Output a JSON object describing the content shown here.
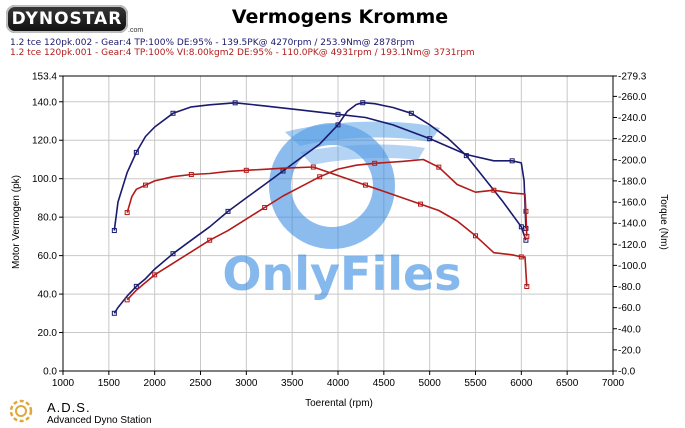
{
  "header": {
    "logo": "DYNOSTAR",
    "logo_sub": ".com",
    "title": "Vermogens Kromme",
    "run_1": "1.2 tce 120pk.002 - Gear:4 TP:100% DE:95%   - 139.5PK@ 4270rpm / 253.9Nm@ 2878rpm",
    "run_2": "1.2 tce 120pk.001 - Gear:4 TP:100% VI:8.00kgm2 DE:95%   - 110.0PK@ 4931rpm / 193.1Nm@ 3731rpm"
  },
  "footer": {
    "title": "A.D.S.",
    "subtitle": "Advanced Dyno Station"
  },
  "watermark": "OnlyFiles",
  "colors": {
    "run_1": "#1a1a6e",
    "run_2": "#b31b1b",
    "grid": "#c8c8c8",
    "watermark": "#2e86de"
  },
  "chart_data": {
    "type": "line",
    "xlabel": "Toerental (rpm)",
    "ylabel": "Motor Vermogen (pk)",
    "y2label": "Torque (Nm)",
    "xlim": [
      1000,
      7000
    ],
    "ylim": [
      0,
      153.4
    ],
    "y2lim": [
      0,
      279.3
    ],
    "x_ticks": [
      1000,
      1500,
      2000,
      2500,
      3000,
      3500,
      4000,
      4500,
      5000,
      5500,
      6000,
      6500,
      7000
    ],
    "y_ticks": [
      "0.0",
      "20.0",
      "40.0",
      "60.0",
      "80.0",
      "100.0",
      "120.0",
      "140.0",
      "153.4"
    ],
    "y2_ticks": [
      "-0.0",
      "-20.0",
      "-40.0",
      "-60.0",
      "-80.0",
      "-100.0",
      "-120.0",
      "-140.0",
      "-160.0",
      "-180.0",
      "-200.0",
      "-220.0",
      "-240.0",
      "-260.0",
      "-279.3"
    ],
    "grid": true,
    "series": [
      {
        "name": "1.2 tce 120pk.002",
        "metric": "power",
        "axis": "left",
        "color": "#1a1a6e",
        "points": [
          [
            1560,
            30
          ],
          [
            1600,
            33
          ],
          [
            1700,
            39
          ],
          [
            1800,
            44
          ],
          [
            1900,
            48
          ],
          [
            2000,
            53
          ],
          [
            2200,
            61
          ],
          [
            2400,
            68
          ],
          [
            2600,
            75
          ],
          [
            2800,
            83
          ],
          [
            3000,
            90
          ],
          [
            3200,
            97
          ],
          [
            3400,
            104
          ],
          [
            3600,
            111
          ],
          [
            3800,
            118
          ],
          [
            4000,
            128
          ],
          [
            4100,
            135
          ],
          [
            4200,
            138.6
          ],
          [
            4270,
            139.5
          ],
          [
            4400,
            139
          ],
          [
            4600,
            137
          ],
          [
            4800,
            134
          ],
          [
            5000,
            128
          ],
          [
            5200,
            121
          ],
          [
            5400,
            112
          ],
          [
            5600,
            100
          ],
          [
            5800,
            88
          ],
          [
            6000,
            75
          ],
          [
            6050,
            68
          ]
        ]
      },
      {
        "name": "1.2 tce 120pk.002",
        "metric": "torque",
        "axis": "right",
        "color": "#1a1a6e",
        "points": [
          [
            1560,
            133
          ],
          [
            1600,
            160
          ],
          [
            1700,
            188
          ],
          [
            1800,
            207
          ],
          [
            1900,
            222
          ],
          [
            2000,
            231
          ],
          [
            2200,
            244
          ],
          [
            2400,
            250
          ],
          [
            2600,
            252
          ],
          [
            2878,
            253.9
          ],
          [
            3200,
            251
          ],
          [
            3600,
            247
          ],
          [
            4000,
            243
          ],
          [
            4300,
            240
          ],
          [
            4600,
            233
          ],
          [
            5000,
            220
          ],
          [
            5400,
            205
          ],
          [
            5700,
            199
          ],
          [
            5900,
            199
          ],
          [
            6000,
            197
          ],
          [
            6030,
            180
          ],
          [
            6050,
            135
          ]
        ]
      },
      {
        "name": "1.2 tce 120pk.001",
        "metric": "power",
        "axis": "left",
        "color": "#b31b1b",
        "points": [
          [
            1700,
            37
          ],
          [
            1800,
            42
          ],
          [
            1900,
            46
          ],
          [
            2000,
            50
          ],
          [
            2200,
            56
          ],
          [
            2400,
            62
          ],
          [
            2600,
            68
          ],
          [
            2800,
            73
          ],
          [
            3000,
            79
          ],
          [
            3200,
            85
          ],
          [
            3400,
            91
          ],
          [
            3600,
            96
          ],
          [
            3800,
            101
          ],
          [
            4000,
            105
          ],
          [
            4200,
            107
          ],
          [
            4400,
            108
          ],
          [
            4700,
            109
          ],
          [
            4931,
            110
          ],
          [
            5100,
            106
          ],
          [
            5300,
            97
          ],
          [
            5500,
            93
          ],
          [
            5700,
            94
          ],
          [
            5900,
            92.5
          ],
          [
            6040,
            92
          ],
          [
            6050,
            83
          ],
          [
            6060,
            70
          ]
        ]
      },
      {
        "name": "1.2 tce 120pk.001",
        "metric": "torque",
        "axis": "right",
        "color": "#b31b1b",
        "points": [
          [
            1700,
            150
          ],
          [
            1750,
            165
          ],
          [
            1800,
            172
          ],
          [
            1900,
            176
          ],
          [
            2000,
            180
          ],
          [
            2200,
            184
          ],
          [
            2400,
            186
          ],
          [
            2600,
            187
          ],
          [
            2800,
            189
          ],
          [
            3000,
            190
          ],
          [
            3200,
            191
          ],
          [
            3400,
            192
          ],
          [
            3731,
            193.1
          ],
          [
            3900,
            188
          ],
          [
            4100,
            182
          ],
          [
            4300,
            176
          ],
          [
            4500,
            170
          ],
          [
            4700,
            164
          ],
          [
            4900,
            158
          ],
          [
            5100,
            152
          ],
          [
            5300,
            142
          ],
          [
            5500,
            128
          ],
          [
            5700,
            112
          ],
          [
            5900,
            110
          ],
          [
            6000,
            108
          ],
          [
            6040,
            108
          ],
          [
            6060,
            80
          ]
        ]
      }
    ]
  }
}
